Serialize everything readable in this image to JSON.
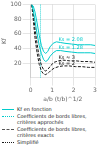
{
  "chart_data": {
    "type": "line",
    "y_label": "Kf",
    "x_label": "a/b (t/b)^1/2",
    "xlim": [
      0,
      3.0
    ],
    "ylim": [
      0,
      100
    ],
    "xticks": [
      0,
      1,
      2,
      3
    ],
    "yticks": [
      20,
      40,
      60,
      80,
      100
    ],
    "grid": true,
    "series": [
      {
        "color": "#00cccc",
        "line_style": "solid",
        "x": [
          0.05,
          0.12,
          0.2,
          0.3,
          0.4,
          0.5,
          0.6,
          0.7,
          0.8,
          0.9,
          1.05,
          1.2,
          1.4,
          1.6,
          1.9,
          2.2,
          2.5,
          2.8,
          3.0
        ],
        "values": [
          100,
          98,
          90,
          75,
          58,
          44,
          36,
          33,
          36,
          42,
          47,
          49,
          48,
          47,
          46,
          45,
          45,
          45,
          44
        ]
      },
      {
        "color": "#00cccc",
        "line_style": "solid",
        "x": [
          0.05,
          0.12,
          0.2,
          0.3,
          0.4,
          0.5,
          0.6,
          0.7,
          0.8,
          0.9,
          1.05,
          1.2,
          1.4,
          1.6,
          1.9,
          2.2,
          2.5,
          2.8,
          3.0
        ],
        "values": [
          100,
          92,
          78,
          60,
          44,
          33,
          25,
          22,
          24,
          29,
          34,
          37,
          37,
          36,
          35,
          34,
          34,
          34,
          33
        ]
      },
      {
        "color": "#1a1a1a",
        "line_style": "dashed",
        "x": [
          0.05,
          0.12,
          0.2,
          0.3,
          0.4,
          0.5,
          0.6,
          0.68,
          0.75,
          0.85,
          0.95,
          1.1,
          1.3,
          1.5,
          1.8,
          2.1,
          2.4,
          2.7,
          3.0
        ],
        "values": [
          100,
          88,
          68,
          46,
          28,
          17,
          11,
          9,
          10,
          13,
          17,
          21,
          23,
          24,
          23,
          23,
          22,
          22,
          21
        ]
      },
      {
        "color": "#1a1a1a",
        "line_style": "dashed",
        "x": [
          0.05,
          0.12,
          0.2,
          0.3,
          0.4,
          0.5,
          0.6,
          0.68,
          0.75,
          0.85,
          0.95,
          1.1,
          1.3,
          1.5,
          1.8,
          2.1,
          2.4,
          2.7,
          3.0
        ],
        "values": [
          100,
          80,
          55,
          34,
          18,
          9,
          5,
          4,
          5,
          7,
          10,
          13,
          15,
          16,
          16,
          15,
          15,
          14,
          14
        ]
      }
    ],
    "vertical_line": {
      "x": 0.46,
      "color": "#00cccc",
      "line_style": "dotted"
    },
    "annotations": [
      {
        "text": "Ks = 2.08",
        "x": 1.3,
        "y": 48.5,
        "color": "#00cccc"
      },
      {
        "text": "Ks = 1.28",
        "x": 1.3,
        "y": 37.5,
        "color": "#00cccc"
      },
      {
        "text": "Ks ≈ 3",
        "x": 1.3,
        "y": 23.5,
        "color": "#1a1a1a"
      },
      {
        "text": "Ks = 2",
        "x": 1.3,
        "y": 15.5,
        "color": "#1a1a1a"
      }
    ],
    "legend_entries": [
      {
        "label": "Kf en fonction",
        "color": "#00cccc",
        "line_style": "solid"
      },
      {
        "label": "Coefficients de bords libres, critères approchés",
        "color": "#00cccc",
        "line_style": "dotted"
      },
      {
        "label": "Coefficients de bords libres, critères exacts",
        "color": "#555555",
        "line_style": "dashed"
      },
      {
        "label": "Simplifié",
        "color": "#1a1a1a",
        "line_style": "dotted"
      }
    ]
  }
}
